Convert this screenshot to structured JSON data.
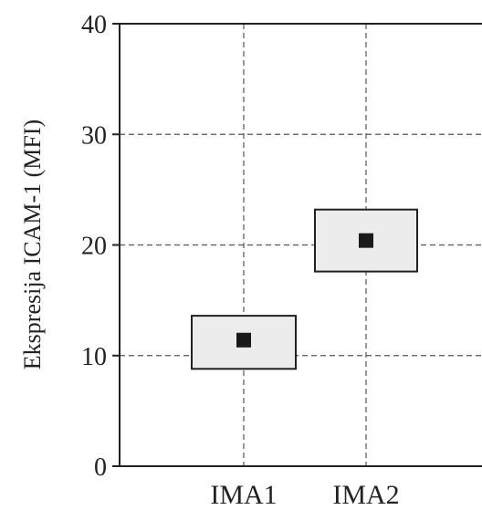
{
  "chart_data": {
    "type": "box",
    "xlabel": "",
    "ylabel": "Ekspresija ICAM-1 (MFI)",
    "ylim": [
      0,
      40
    ],
    "yticks": [
      "0",
      "10",
      "20",
      "30",
      "40"
    ],
    "categories": [
      "IMA1",
      "IMA2"
    ],
    "series": [
      {
        "values": [
          {
            "category": "IMA1",
            "box_low": 8.8,
            "box_high": 13.6,
            "center": 11.4
          },
          {
            "category": "IMA2",
            "box_low": 17.6,
            "box_high": 23.2,
            "center": 20.4
          }
        ]
      }
    ],
    "grid": true,
    "colors": {
      "box_fill": "#ececec",
      "box_stroke": "#222222",
      "marker": "#1a1a1a",
      "grid": "#555555"
    }
  }
}
